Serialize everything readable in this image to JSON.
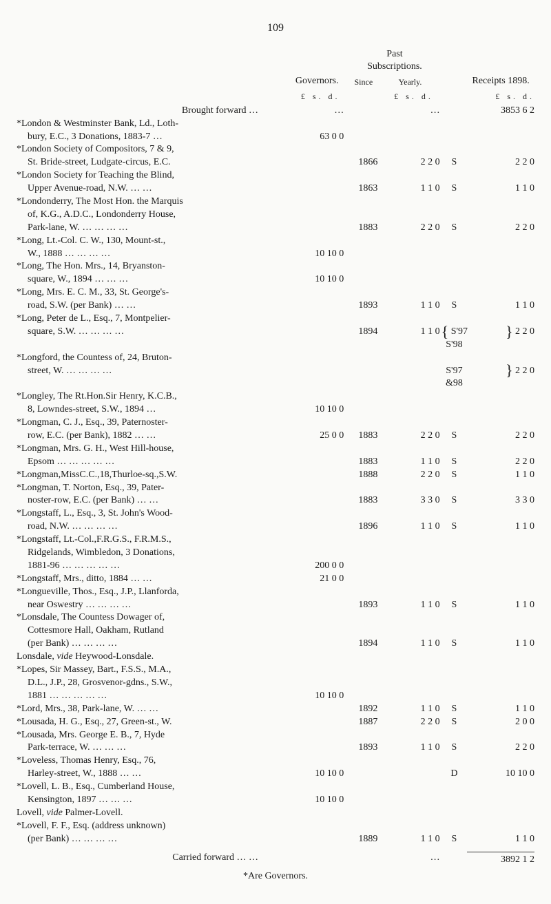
{
  "page_number": "109",
  "headers": {
    "governors": "Governors.",
    "past_subs": "Past\nSubscriptions.",
    "receipts": "Receipts 1898.",
    "since": "Since",
    "yearly": "Yearly.",
    "amount_head": "£   s.  d.",
    "amount_head2": "£ s. d.",
    "amount_head3": "£   s.  d."
  },
  "brought_forward": {
    "label": "Brought forward …",
    "governors": "…",
    "yearly": "…",
    "receipts": "3853  6  2"
  },
  "rows": [
    {
      "desc": "*London & Westminster Bank, Ld., Loth-"
    },
    {
      "desc": "bury, E.C., 3 Donations, 1883-7 …",
      "cls": "desc-indent",
      "gov": "63  0  0"
    },
    {
      "desc": "*London Society of Compositors, 7 & 9,"
    },
    {
      "desc": "St. Bride-street, Ludgate-circus, E.C.",
      "cls": "desc-indent",
      "since": "1866",
      "yearly": "2  2  0",
      "ann": "S",
      "rec": "2  2  0"
    },
    {
      "desc": "*London Society for Teaching the Blind,"
    },
    {
      "desc": "Upper Avenue-road, N.W. … …",
      "cls": "desc-indent",
      "since": "1863",
      "yearly": "1  1  0",
      "ann": "S",
      "rec": "1  1  0"
    },
    {
      "desc": "*Londonderry, The Most Hon. the Marquis"
    },
    {
      "desc": "of, K.G., A.D.C., Londonderry House,",
      "cls": "desc-indent"
    },
    {
      "desc": "Park-lane, W. … … … …",
      "cls": "desc-indent",
      "since": "1883",
      "yearly": "2  2  0",
      "ann": "S",
      "rec": "2  2  0"
    },
    {
      "desc": "*Long, Lt.-Col. C. W., 130, Mount-st.,"
    },
    {
      "desc": "W., 1888 … … … …",
      "cls": "desc-indent",
      "gov": "10 10  0"
    },
    {
      "desc": "*Long, The Hon. Mrs., 14, Bryanston-"
    },
    {
      "desc": "square, W., 1894 … … …",
      "cls": "desc-indent",
      "gov": "10 10  0"
    },
    {
      "desc": "*Long, Mrs. E. C. M., 33, St. George's-"
    },
    {
      "desc": "road, S.W. (per Bank) … …",
      "cls": "desc-indent",
      "since": "1893",
      "yearly": "1  1  0",
      "ann": "S",
      "rec": "1  1  0"
    },
    {
      "desc": "*Long, Peter de L., Esq., 7, Montpelier-"
    },
    {
      "desc": "square, S.W. … … … …",
      "cls": "desc-indent",
      "since": "1894",
      "yearly": "1  1  0",
      "ann_html": "<span class='brace'>{</span> S'97<br>S'98",
      "rec_html": "<span class='brace'>}</span> 2  2  0"
    },
    {
      "desc": "*Longford, the Countess of, 24, Bruton-"
    },
    {
      "desc": "street, W. … … … …",
      "cls": "desc-indent",
      "ann_html": "S'97<br>&98",
      "rec_html": "<span class='brace'>}</span> 2  2  0"
    },
    {
      "desc": "*Longley, The Rt.Hon.Sir Henry, K.C.B.,"
    },
    {
      "desc": "8, Lowndes-street, S.W., 1894 …",
      "cls": "desc-indent",
      "gov": "10 10  0"
    },
    {
      "desc": "*Longman, C. J., Esq., 39, Paternoster-"
    },
    {
      "desc": "row, E.C. (per Bank), 1882 … …",
      "cls": "desc-indent",
      "gov": "25  0  0",
      "since": "1883",
      "yearly": "2  2  0",
      "ann": "S",
      "rec": "2  2  0"
    },
    {
      "desc": "*Longman, Mrs. G. H., West Hill-house,"
    },
    {
      "desc": "Epsom … … … … …",
      "cls": "desc-indent",
      "since": "1883",
      "yearly": "1  1  0",
      "ann": "S",
      "rec": "2  2  0"
    },
    {
      "desc": "*Longman,MissC.C.,18,Thurloe-sq.,S.W.",
      "since": "1888",
      "yearly": "2  2  0",
      "ann": "S",
      "rec": "1  1  0"
    },
    {
      "desc": "*Longman, T. Norton, Esq., 39, Pater-"
    },
    {
      "desc": "noster-row, E.C. (per Bank) … …",
      "cls": "desc-indent",
      "since": "1883",
      "yearly": "3  3  0",
      "ann": "S",
      "rec": "3  3  0"
    },
    {
      "desc": "*Longstaff, L., Esq., 3, St. John's Wood-"
    },
    {
      "desc": "road, N.W. … … … …",
      "cls": "desc-indent",
      "since": "1896",
      "yearly": "1  1  0",
      "ann": "S",
      "rec": "1  1  0"
    },
    {
      "desc": "*Longstaff, Lt.-Col.,F.R.G.S., F.R.M.S.,"
    },
    {
      "desc": "Ridgelands, Wimbledon, 3 Donations,",
      "cls": "desc-indent"
    },
    {
      "desc": "1881-96 … … … … …",
      "cls": "desc-indent",
      "gov": "200  0  0"
    },
    {
      "desc": "*Longstaff, Mrs., ditto, 1884 … …",
      "gov": "21  0  0"
    },
    {
      "desc": "*Longueville, Thos., Esq., J.P., Llanforda,"
    },
    {
      "desc": "near Oswestry … … … …",
      "cls": "desc-indent",
      "since": "1893",
      "yearly": "1  1  0",
      "ann": "S",
      "rec": "1  1  0"
    },
    {
      "desc": "*Lonsdale, The Countess Dowager of,"
    },
    {
      "desc": "Cottesmore Hall, Oakham, Rutland",
      "cls": "desc-indent"
    },
    {
      "desc": "(per Bank) … … … …",
      "cls": "desc-indent",
      "since": "1894",
      "yearly": "1  1  0",
      "ann": "S",
      "rec": "1  1  0"
    },
    {
      "desc": "Lonsdale, <i>vide</i> Heywood-Lonsdale.",
      "raw": true
    },
    {
      "desc": "*Lopes, Sir Massey, Bart., F.S.S., M.A.,"
    },
    {
      "desc": "D.L., J.P., 28, Grosvenor-gdns., S.W.,",
      "cls": "desc-indent"
    },
    {
      "desc": "1881 … … … … …",
      "cls": "desc-indent",
      "gov": "10 10  0"
    },
    {
      "desc": "*Lord, Mrs., 38, Park-lane, W. … …",
      "since": "1892",
      "yearly": "1  1  0",
      "ann": "S",
      "rec": "1  1  0"
    },
    {
      "desc": "*Lousada, H. G., Esq., 27, Green-st., W.",
      "since": "1887",
      "yearly": "2  2  0",
      "ann": "S",
      "rec": "2  0  0"
    },
    {
      "desc": "*Lousada, Mrs. George E. B., 7, Hyde"
    },
    {
      "desc": "Park-terrace, W. … … …",
      "cls": "desc-indent",
      "since": "1893",
      "yearly": "1  1  0",
      "ann": "S",
      "rec": "2  2  0"
    },
    {
      "desc": "*Loveless, Thomas Henry, Esq., 76,"
    },
    {
      "desc": "Harley-street, W., 1888 … …",
      "cls": "desc-indent",
      "gov": "10 10  0",
      "ann": "D",
      "rec": "10 10  0"
    },
    {
      "desc": "*Lovell, L. B., Esq., Cumberland House,"
    },
    {
      "desc": "Kensington, 1897 … … …",
      "cls": "desc-indent",
      "gov": "10 10  0"
    },
    {
      "desc": "Lovell, <i>vide</i> Palmer-Lovell.",
      "raw": true
    },
    {
      "desc": "*Lovell, F. F., Esq. (address unknown)"
    },
    {
      "desc": "(per Bank) … … … …",
      "cls": "desc-indent",
      "since": "1889",
      "yearly": "1  1  0",
      "ann": "S",
      "rec": "1  1  0"
    }
  ],
  "carried_forward": {
    "label": "Carried forward … …",
    "yearly": "…",
    "receipts": "3892  1  2"
  },
  "footer": "*Are Governors."
}
